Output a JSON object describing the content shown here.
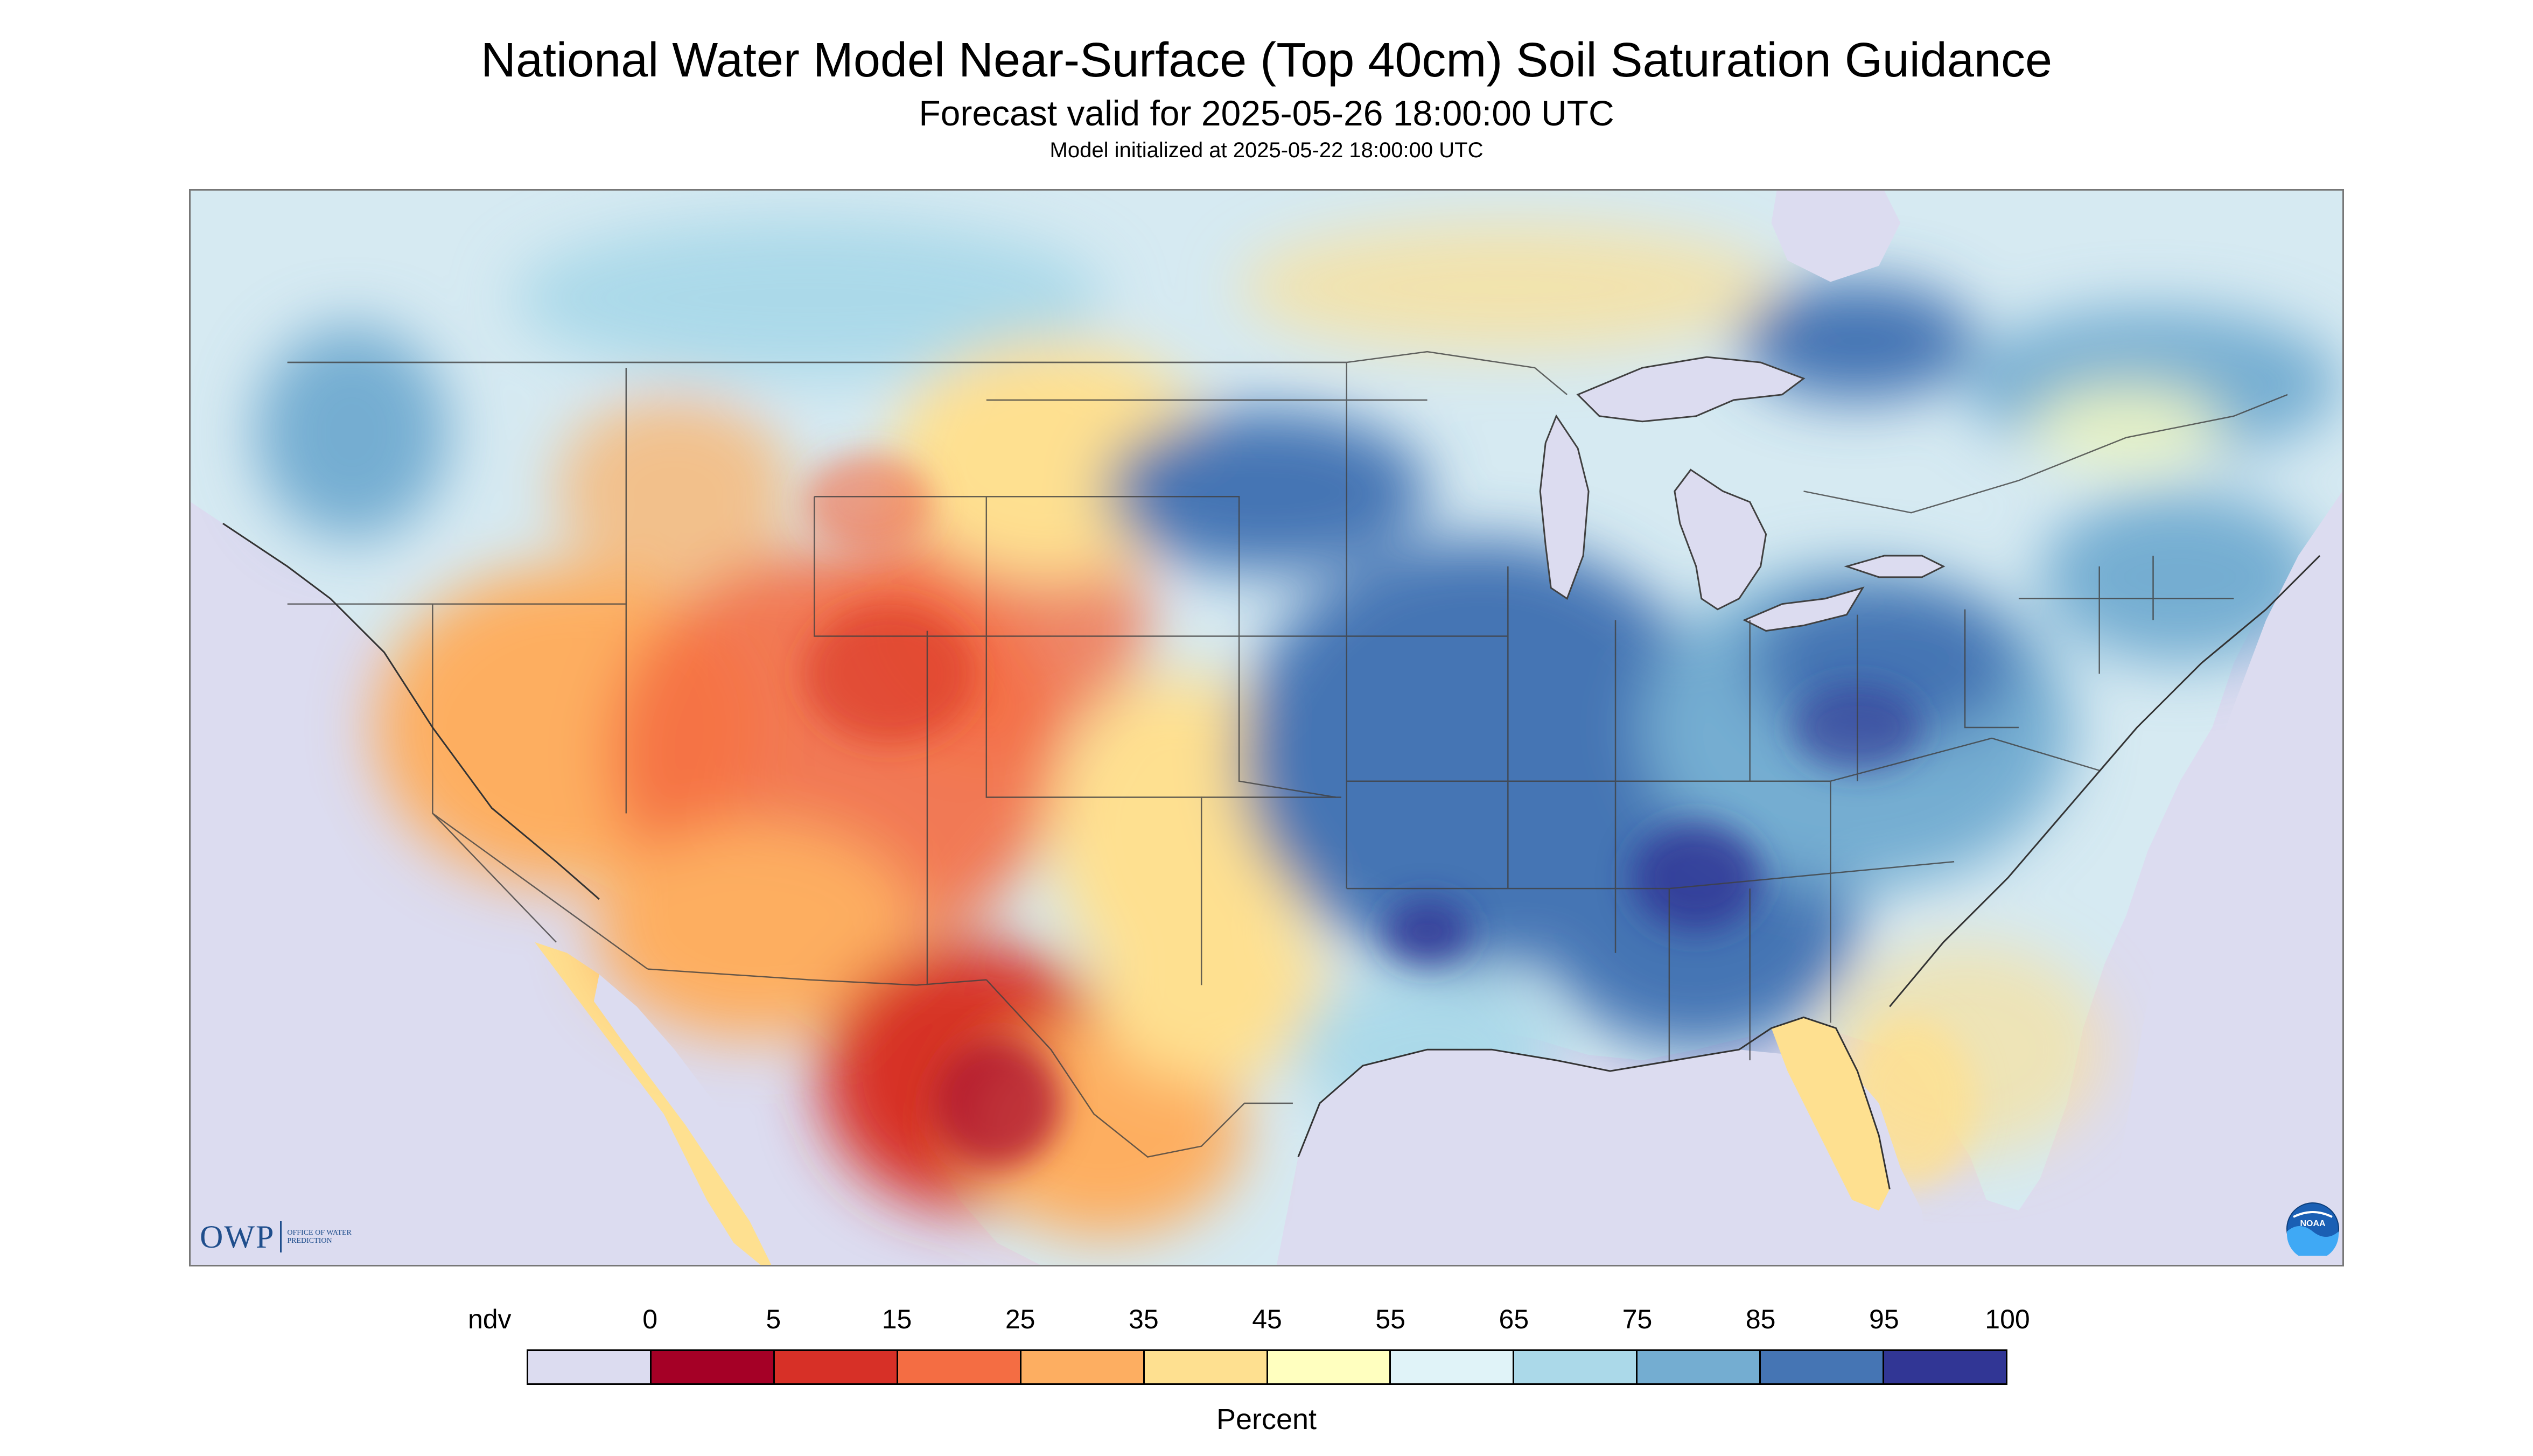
{
  "title": "National Water Model Near-Surface (Top 40cm) Soil Saturation Guidance",
  "subtitle": "Forecast valid for 2025-05-26 18:00:00 UTC",
  "init_line": "Model initialized at 2025-05-22 18:00:00 UTC",
  "logos": {
    "owp_mark": "OWP",
    "owp_text": "OFFICE OF WATER PREDICTION",
    "noaa_mark": "NOAA"
  },
  "colorbar": {
    "label": "Percent",
    "ticks": [
      "ndv",
      "0",
      "5",
      "15",
      "25",
      "35",
      "45",
      "55",
      "65",
      "75",
      "85",
      "95",
      "100"
    ],
    "colors": [
      "#dcdcf0",
      "#a50026",
      "#d73027",
      "#f46d43",
      "#fdae61",
      "#fee090",
      "#ffffbf",
      "#e0f3f8",
      "#abd9e9",
      "#74add1",
      "#4575b4",
      "#313695"
    ]
  },
  "map": {
    "nodata_color": "#dcdcf0",
    "water_color": "#dcdcf0",
    "border_color": "#404040"
  }
}
